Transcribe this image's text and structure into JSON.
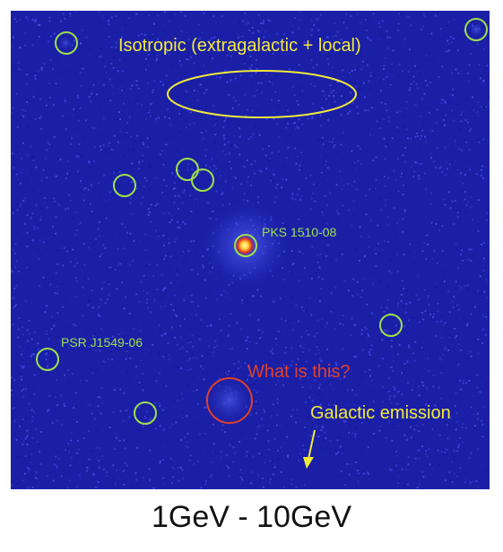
{
  "image": {
    "subject": "gamma-ray count map",
    "energy_range": "1GeV - 10GeV",
    "background_color": "#1a1fa6",
    "noise_color": "#3a3fd0"
  },
  "labels": {
    "isotropic": "Isotropic (extragalactic + local)",
    "pks": "PKS 1510-08",
    "psr": "PSR J1549-06",
    "unknown": "What is this?",
    "galactic": "Galactic emission"
  },
  "colors": {
    "yellow": "#f2ea3a",
    "green": "#9ee04a",
    "red": "#e0402a"
  },
  "markers": {
    "green_circles_count": 10,
    "red_circles_count": 1,
    "isotropic_ellipse": true,
    "galactic_arrow": true
  }
}
